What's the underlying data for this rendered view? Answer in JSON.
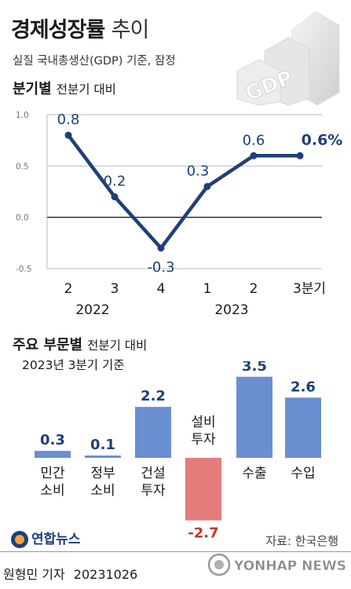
{
  "title": {
    "bold": "경제성장률",
    "light": "추이"
  },
  "subtitle": "실질 국내총생산(GDP) 기준, 잠정",
  "graphic_label": "GDP",
  "section1": {
    "title": "분기별",
    "basis": "전분기 대비"
  },
  "section2": {
    "title": "주요 부문별",
    "basis": "전분기 대비",
    "reference": "2023년 3분기 기준"
  },
  "colors": {
    "line": "#1f3f7a",
    "bar_positive": "#6a8fd0",
    "bar_negative": "#e57c7c",
    "axis": "#222222",
    "grid": "#bdbdbd"
  },
  "chart_data": [
    {
      "type": "line",
      "title": "분기별",
      "subtitle": "전분기 대비",
      "ylim": [
        -0.5,
        1.0
      ],
      "y_ticks": [
        "1.0",
        "0.5",
        "0.0",
        "-0.5"
      ],
      "y_tick_values": [
        1.0,
        0.5,
        0.0,
        -0.5
      ],
      "categories": [
        "2",
        "3",
        "4",
        "1",
        "2",
        "3분기"
      ],
      "year_labels": [
        {
          "label": "2022",
          "span": [
            0,
            2
          ]
        },
        {
          "label": "2023",
          "span": [
            3,
            5
          ]
        }
      ],
      "series": [
        {
          "values": [
            0.8,
            0.2,
            -0.3,
            0.3,
            0.6,
            0.6
          ]
        }
      ],
      "data_labels": [
        "0.8",
        "0.2",
        "-0.3",
        "0.3",
        "0.6",
        "0.6%"
      ],
      "grid": true
    },
    {
      "type": "bar",
      "title": "주요 부문별",
      "subtitle": "전분기 대비",
      "note": "2023년 3분기 기준",
      "categories": [
        [
          "민간",
          "소비"
        ],
        [
          "정부",
          "소비"
        ],
        [
          "건설",
          "투자"
        ],
        [
          "설비",
          "투자"
        ],
        [
          "수출"
        ],
        [
          "수입"
        ]
      ],
      "values": [
        0.3,
        0.1,
        2.2,
        -2.7,
        3.5,
        2.6
      ],
      "data_labels": [
        "0.3",
        "0.1",
        "2.2",
        "-2.7",
        "3.5",
        "2.6"
      ]
    }
  ],
  "footer": {
    "logo": "연합뉴스",
    "source": "자료: 한국은행",
    "reporter": "원형민 기자",
    "date": "20231026",
    "watermark": "YONHAP NEWS"
  }
}
